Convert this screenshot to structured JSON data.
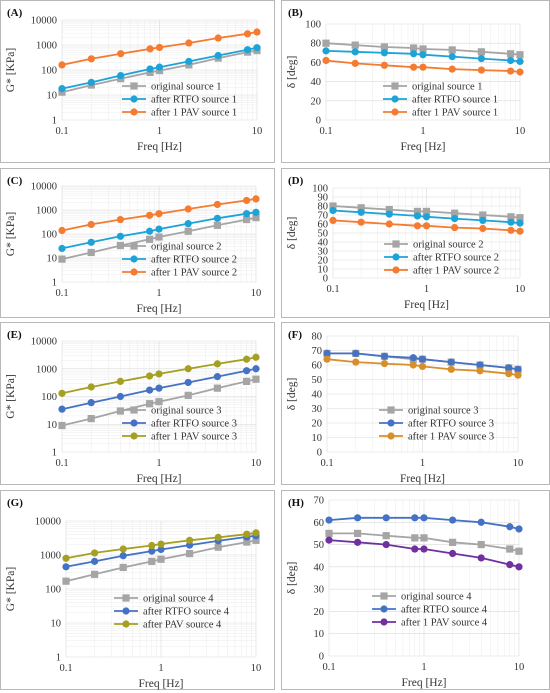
{
  "chart_data": [
    {
      "panel": "(A)",
      "type": "line",
      "xscale": "log",
      "yscale": "log",
      "xlim": [
        0.1,
        10
      ],
      "ylim": [
        1,
        10000
      ],
      "xticks": [
        "0.1",
        "1",
        "10"
      ],
      "yticks": [
        "1",
        "10",
        "100",
        "1000",
        "10000"
      ],
      "xlabel": "Freq [Hz]",
      "ylabel": "G* [KPa]",
      "legend": "lower-right",
      "series": [
        {
          "name": "original source 1",
          "color": "#a5a5a5",
          "marker": "square",
          "x": [
            0.1,
            0.2,
            0.4,
            0.8,
            1.0,
            2.0,
            4.0,
            8.0,
            10.0
          ],
          "y": [
            13,
            25,
            45,
            80,
            95,
            160,
            300,
            520,
            600
          ]
        },
        {
          "name": "after RTFO source 1",
          "color": "#1ca3d8",
          "marker": "circle",
          "x": [
            0.1,
            0.2,
            0.4,
            0.8,
            1.0,
            2.0,
            4.0,
            8.0,
            10.0
          ],
          "y": [
            18,
            32,
            60,
            110,
            130,
            220,
            380,
            650,
            780
          ]
        },
        {
          "name": "after 1 PAV source 1",
          "color": "#f47b30",
          "marker": "circle",
          "x": [
            0.1,
            0.2,
            0.4,
            0.8,
            1.0,
            2.0,
            4.0,
            8.0,
            10.0
          ],
          "y": [
            160,
            280,
            450,
            700,
            800,
            1200,
            1900,
            2800,
            3300
          ]
        }
      ]
    },
    {
      "panel": "(B)",
      "type": "line",
      "xscale": "log",
      "yscale": "linear",
      "xlim": [
        0.1,
        10
      ],
      "ylim": [
        0,
        100
      ],
      "xticks": [
        "0.1",
        "1",
        "10"
      ],
      "yticks": [
        "0",
        "20",
        "40",
        "60",
        "80",
        "100"
      ],
      "xlabel": "Freq [Hz]",
      "ylabel": "δ [deg]",
      "legend": "lower-right",
      "series": [
        {
          "name": "original source 1",
          "color": "#a5a5a5",
          "marker": "square",
          "x": [
            0.1,
            0.2,
            0.4,
            0.8,
            1.0,
            2.0,
            4.0,
            8.0,
            10.0
          ],
          "y": [
            80,
            78,
            76,
            75,
            74,
            73,
            71,
            69,
            68
          ]
        },
        {
          "name": "after RTFO source 1",
          "color": "#1ca3d8",
          "marker": "circle",
          "x": [
            0.1,
            0.2,
            0.4,
            0.8,
            1.0,
            2.0,
            4.0,
            8.0,
            10.0
          ],
          "y": [
            72,
            71,
            70,
            69,
            68,
            66,
            64,
            62,
            61
          ]
        },
        {
          "name": "after 1 PAV source 1",
          "color": "#f47b30",
          "marker": "circle",
          "x": [
            0.1,
            0.2,
            0.4,
            0.8,
            1.0,
            2.0,
            4.0,
            8.0,
            10.0
          ],
          "y": [
            62,
            59,
            57,
            55,
            55,
            53,
            52,
            51,
            50
          ]
        }
      ]
    },
    {
      "panel": "(C)",
      "type": "line",
      "xscale": "log",
      "yscale": "log",
      "xlim": [
        0.1,
        10
      ],
      "ylim": [
        1,
        10000
      ],
      "xticks": [
        "0.1",
        "1",
        "10"
      ],
      "yticks": [
        "1",
        "10",
        "100",
        "1000",
        "10000"
      ],
      "xlabel": "Freq [Hz]",
      "ylabel": "G* [KPa]",
      "legend": "lower-right",
      "series": [
        {
          "name": "original source 2",
          "color": "#a5a5a5",
          "marker": "square",
          "x": [
            0.1,
            0.2,
            0.4,
            0.8,
            1.0,
            2.0,
            4.0,
            8.0,
            10.0
          ],
          "y": [
            9,
            17,
            33,
            60,
            75,
            130,
            230,
            400,
            480
          ]
        },
        {
          "name": "after RTFO source 2",
          "color": "#1ca3d8",
          "marker": "circle",
          "x": [
            0.1,
            0.2,
            0.4,
            0.8,
            1.0,
            2.0,
            4.0,
            8.0,
            10.0
          ],
          "y": [
            25,
            45,
            80,
            130,
            160,
            270,
            450,
            700,
            800
          ]
        },
        {
          "name": "after 1 PAV source 2",
          "color": "#f47b30",
          "marker": "circle",
          "x": [
            0.1,
            0.2,
            0.4,
            0.8,
            1.0,
            2.0,
            4.0,
            8.0,
            10.0
          ],
          "y": [
            140,
            250,
            400,
            600,
            700,
            1100,
            1700,
            2500,
            2900
          ]
        }
      ]
    },
    {
      "panel": "(D)",
      "type": "line",
      "xscale": "log",
      "yscale": "linear",
      "xlim": [
        0.1,
        10
      ],
      "ylim": [
        0,
        100
      ],
      "xticks": [
        "0.1",
        "1",
        "10"
      ],
      "yticks": [
        "0",
        "10",
        "20",
        "30",
        "40",
        "50",
        "60",
        "70",
        "80",
        "90",
        "100"
      ],
      "xlabel": "Freq [Hz]",
      "ylabel": "δ [deg]",
      "legend": "lower-right",
      "series": [
        {
          "name": "original source 2",
          "color": "#a5a5a5",
          "marker": "square",
          "x": [
            0.1,
            0.2,
            0.4,
            0.8,
            1.0,
            2.0,
            4.0,
            8.0,
            10.0
          ],
          "y": [
            80,
            78,
            76,
            74,
            74,
            72,
            70,
            68,
            67
          ]
        },
        {
          "name": "after RTFO source 2",
          "color": "#1ca3d8",
          "marker": "circle",
          "x": [
            0.1,
            0.2,
            0.4,
            0.8,
            1.0,
            2.0,
            4.0,
            8.0,
            10.0
          ],
          "y": [
            75,
            73,
            71,
            69,
            68,
            66,
            64,
            62,
            61
          ]
        },
        {
          "name": "after 1 PAV source 2",
          "color": "#f47b30",
          "marker": "circle",
          "x": [
            0.1,
            0.2,
            0.4,
            0.8,
            1.0,
            2.0,
            4.0,
            8.0,
            10.0
          ],
          "y": [
            64,
            62,
            60,
            58,
            58,
            56,
            55,
            53,
            52
          ]
        }
      ]
    },
    {
      "panel": "(E)",
      "type": "line",
      "xscale": "log",
      "yscale": "log",
      "xlim": [
        0.1,
        10
      ],
      "ylim": [
        1,
        10000
      ],
      "xticks": [
        "0.1",
        "1",
        "10"
      ],
      "yticks": [
        "1",
        "10",
        "100",
        "1000",
        "10000"
      ],
      "xlabel": "Freq [Hz]",
      "ylabel": "G* [KPa]",
      "legend": "lower-right",
      "series": [
        {
          "name": "original source 3",
          "color": "#a5a5a5",
          "marker": "square",
          "x": [
            0.1,
            0.2,
            0.4,
            0.8,
            1.0,
            2.0,
            4.0,
            8.0,
            10.0
          ],
          "y": [
            9,
            16,
            30,
            55,
            65,
            110,
            200,
            350,
            420
          ]
        },
        {
          "name": "after RTFO source 3",
          "color": "#4472c4",
          "marker": "circle",
          "x": [
            0.1,
            0.2,
            0.4,
            0.8,
            1.0,
            2.0,
            4.0,
            8.0,
            10.0
          ],
          "y": [
            35,
            60,
            100,
            170,
            200,
            320,
            520,
            850,
            1000
          ]
        },
        {
          "name": "after 1 PAV source 3",
          "color": "#a5a021",
          "marker": "circle",
          "x": [
            0.1,
            0.2,
            0.4,
            0.8,
            1.0,
            2.0,
            4.0,
            8.0,
            10.0
          ],
          "y": [
            130,
            220,
            350,
            550,
            650,
            1000,
            1500,
            2200,
            2600
          ]
        }
      ]
    },
    {
      "panel": "(F)",
      "type": "line",
      "xscale": "log",
      "yscale": "linear",
      "xlim": [
        0.1,
        10
      ],
      "ylim": [
        0,
        80
      ],
      "xticks": [
        "0.1",
        "1",
        "10"
      ],
      "yticks": [
        "0",
        "10",
        "20",
        "30",
        "40",
        "50",
        "60",
        "70",
        "80"
      ],
      "xlabel": "Freq [Hz]",
      "ylabel": "δ [deg]",
      "legend": "lower-right",
      "series": [
        {
          "name": "original source 3",
          "color": "#a5a5a5",
          "marker": "square",
          "x": [
            0.1,
            0.2,
            0.4,
            0.8,
            1.0,
            2.0,
            4.0,
            8.0,
            10.0
          ],
          "y": [
            68,
            68,
            66,
            64,
            64,
            62,
            60,
            58,
            57
          ]
        },
        {
          "name": "after RTFO source 3",
          "color": "#4472c4",
          "marker": "circle",
          "x": [
            0.1,
            0.2,
            0.4,
            0.8,
            1.0,
            2.0,
            4.0,
            8.0,
            10.0
          ],
          "y": [
            68,
            68,
            66,
            65,
            64,
            62,
            60,
            58,
            57
          ]
        },
        {
          "name": "after 1 PAV source 3",
          "color": "#d88f2a",
          "marker": "circle",
          "x": [
            0.1,
            0.2,
            0.4,
            0.8,
            1.0,
            2.0,
            4.0,
            8.0,
            10.0
          ],
          "y": [
            64,
            62,
            61,
            60,
            59,
            57,
            56,
            54,
            53
          ]
        }
      ]
    },
    {
      "panel": "(G)",
      "type": "line",
      "xscale": "log",
      "yscale": "log",
      "xlim": [
        0.1,
        10
      ],
      "ylim": [
        1,
        10000
      ],
      "xticks": [
        "0.1",
        "1",
        "10"
      ],
      "yticks": [
        "1",
        "10",
        "100",
        "1000",
        "10000"
      ],
      "xlabel": "Freq [Hz]",
      "ylabel": "G* [KPa]",
      "legend": "lower-right",
      "series": [
        {
          "name": "original source 4",
          "color": "#a5a5a5",
          "marker": "square",
          "x": [
            0.1,
            0.2,
            0.4,
            0.8,
            1.0,
            2.0,
            4.0,
            8.0,
            10.0
          ],
          "y": [
            170,
            270,
            430,
            650,
            750,
            1100,
            1700,
            2400,
            2700
          ]
        },
        {
          "name": "after RTFO source 4",
          "color": "#4472c4",
          "marker": "circle",
          "x": [
            0.1,
            0.2,
            0.4,
            0.8,
            1.0,
            2.0,
            4.0,
            8.0,
            10.0
          ],
          "y": [
            450,
            650,
            950,
            1300,
            1450,
            1950,
            2600,
            3400,
            3700
          ]
        },
        {
          "name": "after PAV source 4",
          "color": "#a5a021",
          "marker": "circle",
          "x": [
            0.1,
            0.2,
            0.4,
            0.8,
            1.0,
            2.0,
            4.0,
            8.0,
            10.0
          ],
          "y": [
            800,
            1150,
            1500,
            1900,
            2100,
            2700,
            3300,
            4100,
            4500
          ]
        }
      ]
    },
    {
      "panel": "(H)",
      "type": "line",
      "xscale": "log",
      "yscale": "linear",
      "xlim": [
        0.1,
        10
      ],
      "ylim": [
        0,
        70
      ],
      "xticks": [
        "0.1",
        "1",
        "10"
      ],
      "yticks": [
        "0",
        "10",
        "20",
        "30",
        "40",
        "50",
        "60",
        "70"
      ],
      "xlabel": "Freq [Hz]",
      "ylabel": "δ [deg]",
      "legend": "lower-right",
      "series": [
        {
          "name": "original source 4",
          "color": "#a5a5a5",
          "marker": "square",
          "x": [
            0.1,
            0.2,
            0.4,
            0.8,
            1.0,
            2.0,
            4.0,
            8.0,
            10.0
          ],
          "y": [
            55,
            55,
            54,
            53,
            53,
            51,
            50,
            48,
            47
          ]
        },
        {
          "name": "after RTFO source 4",
          "color": "#4472c4",
          "marker": "circle",
          "x": [
            0.1,
            0.2,
            0.4,
            0.8,
            1.0,
            2.0,
            4.0,
            8.0,
            10.0
          ],
          "y": [
            61,
            62,
            62,
            62,
            62,
            61,
            60,
            58,
            57
          ]
        },
        {
          "name": "after 1 PAV source 4",
          "color": "#7030a0",
          "marker": "circle",
          "x": [
            0.1,
            0.2,
            0.4,
            0.8,
            1.0,
            2.0,
            4.0,
            8.0,
            10.0
          ],
          "y": [
            52,
            51,
            50,
            48,
            48,
            46,
            44,
            41,
            40
          ]
        }
      ]
    }
  ]
}
